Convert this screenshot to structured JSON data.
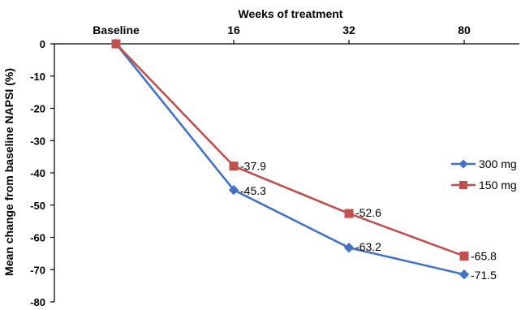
{
  "chart_data": {
    "type": "line",
    "title": "",
    "xlabel": "Weeks of treatment",
    "ylabel": "Mean change from baseline  NAPSI (%)",
    "categories": [
      "Baseline",
      "16",
      "32",
      "80"
    ],
    "x_axis_position": "top",
    "ylim": [
      -80,
      0
    ],
    "yticks": [
      0,
      -10,
      -20,
      -30,
      -40,
      -50,
      -60,
      -70,
      -80
    ],
    "grid": false,
    "legend_position": "right",
    "series": [
      {
        "name": "300 mg",
        "color": "#4472C4",
        "marker": "diamond",
        "values": [
          0,
          -45.3,
          -63.2,
          -71.5
        ],
        "labels": [
          "",
          "-45.3",
          "-63.2",
          "-71.5"
        ]
      },
      {
        "name": "150 mg",
        "color": "#C0504D",
        "marker": "square",
        "values": [
          0,
          -37.9,
          -52.6,
          -65.8
        ],
        "labels": [
          "",
          "-37.9",
          "-52.6",
          "-65.8"
        ]
      }
    ]
  }
}
